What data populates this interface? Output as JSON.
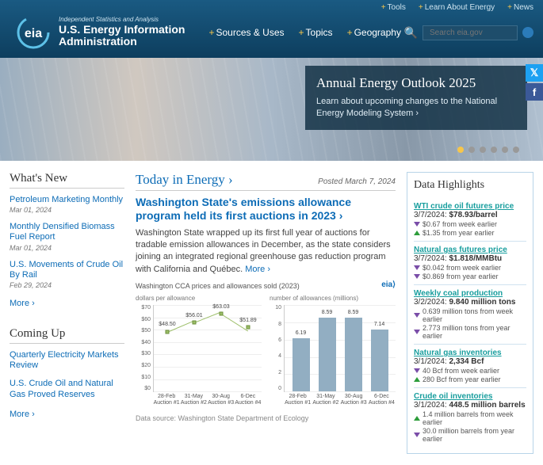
{
  "header": {
    "topbar": [
      {
        "label": "Tools"
      },
      {
        "label": "Learn About Energy"
      },
      {
        "label": "News"
      }
    ],
    "logo": {
      "sub": "Independent Statistics and Analysis",
      "main1": "U.S. Energy Information",
      "main2": "Administration"
    },
    "nav": [
      {
        "label": "Sources & Uses"
      },
      {
        "label": "Topics"
      },
      {
        "label": "Geography"
      }
    ],
    "search_placeholder": "Search eia.gov"
  },
  "hero": {
    "title": "Annual Energy Outlook 2025",
    "desc": "Learn about upcoming changes to the National Energy Modeling System ›",
    "dots": 6,
    "active_dot": 0
  },
  "whats_new": {
    "title": "What's New",
    "items": [
      {
        "label": "Petroleum Marketing Monthly",
        "date": "Mar 01, 2024"
      },
      {
        "label": "Monthly Densified Biomass Fuel Report",
        "date": "Mar 01, 2024"
      },
      {
        "label": "U.S. Movements of Crude Oil By Rail",
        "date": "Feb 29, 2024"
      }
    ],
    "more": "More ›"
  },
  "coming_up": {
    "title": "Coming Up",
    "items": [
      {
        "label": "Quarterly Electricity Markets Review"
      },
      {
        "label": "U.S. Crude Oil and Natural Gas Proved Reserves"
      }
    ],
    "more": "More ›"
  },
  "today_in_energy": {
    "heading": "Today in Energy ›",
    "posted": "Posted March 7, 2024",
    "title": "Washington State's emissions allowance program held its first auctions in 2023 ›",
    "body": "Washington State wrapped up its first full year of auctions for tradable emission allowances in December, as the state considers joining an integrated regional greenhouse gas reduction program with California and Québec.",
    "more": "More ›",
    "chart_overall_title": "Washington CCA prices and allowances sold (2023)",
    "chart1": {
      "type": "line",
      "sub": "dollars per allowance",
      "ylim": [
        0,
        70
      ],
      "ytick_step": 10,
      "y_ticks": [
        "$70",
        "$60",
        "$50",
        "$40",
        "$30",
        "$20",
        "$10",
        "$0"
      ],
      "categories": [
        "28-Feb",
        "31-May",
        "30-Aug",
        "6-Dec"
      ],
      "cat_sub": [
        "Auction #1",
        "Auction #2",
        "Auction #3",
        "Auction #4"
      ],
      "values": [
        48.5,
        56.01,
        63.03,
        51.89
      ],
      "labels": [
        "$48.50",
        "$56.01",
        "$63.03",
        "$51.89"
      ],
      "line_color": "#9dbf6a",
      "marker": "square"
    },
    "chart2": {
      "type": "bar",
      "sub": "number of allowances (millions)",
      "ylim": [
        0,
        10
      ],
      "ytick_step": 2,
      "y_ticks": [
        "10",
        "8",
        "6",
        "4",
        "2",
        "0"
      ],
      "categories": [
        "28-Feb",
        "31-May",
        "30-Aug",
        "6-Dec"
      ],
      "cat_sub": [
        "Auction #1",
        "Auction #2",
        "Auction #3",
        "Auction #4"
      ],
      "values": [
        6.19,
        8.59,
        8.59,
        7.14
      ],
      "labels": [
        "6.19",
        "8.59",
        "8.59",
        "7.14"
      ],
      "bar_color": "#92aec2"
    },
    "data_source": "Data source: Washington State Department of Ecology"
  },
  "data_highlights": {
    "title": "Data Highlights",
    "items": [
      {
        "name": "WTI crude oil futures price",
        "val_date": "3/7/2024:",
        "val": "$78.93/barrel",
        "chg": [
          {
            "dir": "down",
            "txt": "$0.67 from week earlier"
          },
          {
            "dir": "up",
            "txt": "$1.35 from year earlier"
          }
        ]
      },
      {
        "name": "Natural gas futures price",
        "val_date": "3/7/2024:",
        "val": "$1.818/MMBtu",
        "chg": [
          {
            "dir": "down",
            "txt": "$0.042 from week earlier"
          },
          {
            "dir": "down",
            "txt": "$0.869 from year earlier"
          }
        ]
      },
      {
        "name": "Weekly coal production",
        "val_date": "3/2/2024:",
        "val": "9.840 million tons",
        "chg": [
          {
            "dir": "down",
            "txt": "0.639 million tons from week earlier"
          },
          {
            "dir": "down",
            "txt": "2.773 million tons from year earlier"
          }
        ]
      },
      {
        "name": "Natural gas inventories",
        "val_date": "3/1/2024:",
        "val": "2,334 Bcf",
        "chg": [
          {
            "dir": "down",
            "txt": "40 Bcf from week earlier"
          },
          {
            "dir": "up",
            "txt": "280 Bcf from year earlier"
          }
        ]
      },
      {
        "name": "Crude oil inventories",
        "val_date": "3/1/2024:",
        "val": "448.5 million barrels",
        "chg": [
          {
            "dir": "up",
            "txt": "1.4 million barrels from week earlier"
          },
          {
            "dir": "down",
            "txt": "30.0 million barrels from year earlier"
          }
        ]
      }
    ]
  }
}
